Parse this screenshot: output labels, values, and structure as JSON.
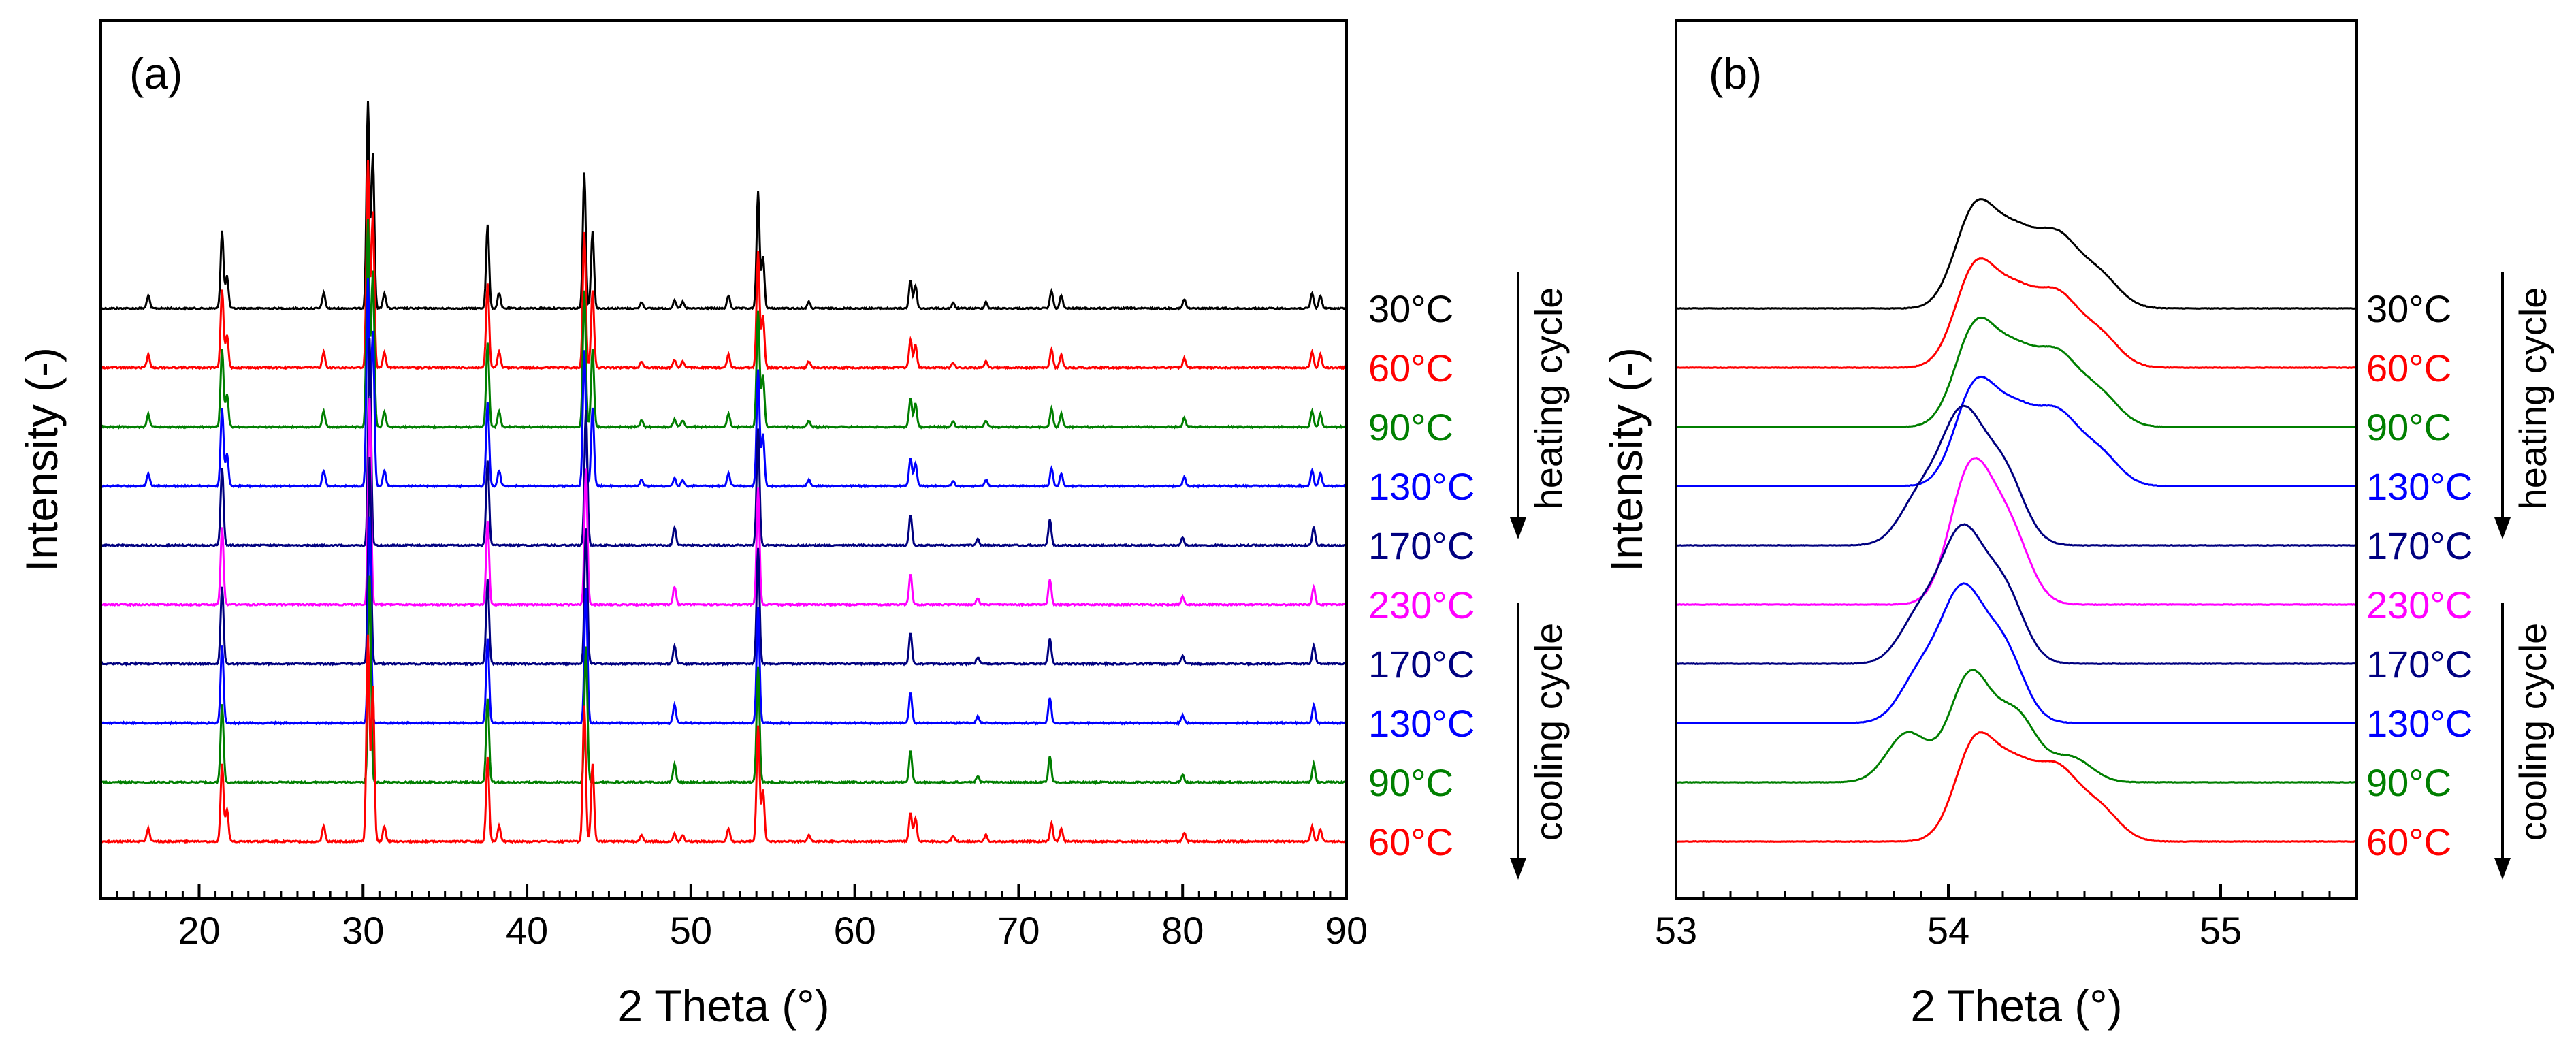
{
  "chart_data": [
    {
      "type": "line",
      "panel_label": "(a)",
      "xlabel": "2 Theta (°)",
      "ylabel": "Intensity (-)",
      "xlim": [
        14,
        90
      ],
      "xticks": [
        20,
        30,
        40,
        50,
        60,
        70,
        80,
        90
      ],
      "x_minor_step": 1,
      "y_scale": "arbitrary (offset traces)",
      "x_range_data": [
        14,
        90
      ],
      "series": [
        {
          "name": "30°C",
          "label": "30°C",
          "color": "#000000",
          "phase": "A",
          "offset": 10,
          "peaks": [
            [
              16.9,
              0.1
            ],
            [
              21.4,
              0.6
            ],
            [
              21.7,
              0.25
            ],
            [
              27.6,
              0.12
            ],
            [
              30.3,
              1.6
            ],
            [
              30.6,
              1.2
            ],
            [
              31.3,
              0.12
            ],
            [
              37.6,
              0.65
            ],
            [
              38.3,
              0.12
            ],
            [
              43.5,
              1.05
            ],
            [
              44.0,
              0.6
            ],
            [
              47.0,
              0.05
            ],
            [
              49.0,
              0.06
            ],
            [
              49.5,
              0.05
            ],
            [
              52.3,
              0.1
            ],
            [
              54.1,
              0.9
            ],
            [
              54.4,
              0.4
            ],
            [
              57.2,
              0.05
            ],
            [
              63.4,
              0.22
            ],
            [
              63.7,
              0.18
            ],
            [
              66.0,
              0.04
            ],
            [
              68.0,
              0.05
            ],
            [
              72.0,
              0.14
            ],
            [
              72.6,
              0.1
            ],
            [
              80.1,
              0.07
            ],
            [
              87.9,
              0.12
            ],
            [
              88.4,
              0.1
            ]
          ]
        },
        {
          "name": "60°C",
          "label": "60°C",
          "color": "#ff0000",
          "phase": "A",
          "offset": 9,
          "peaks": [
            [
              16.9,
              0.1
            ],
            [
              21.4,
              0.6
            ],
            [
              21.7,
              0.25
            ],
            [
              27.6,
              0.12
            ],
            [
              30.3,
              1.6
            ],
            [
              30.6,
              1.2
            ],
            [
              31.3,
              0.12
            ],
            [
              37.6,
              0.65
            ],
            [
              38.3,
              0.12
            ],
            [
              43.5,
              1.05
            ],
            [
              44.0,
              0.6
            ],
            [
              47.0,
              0.05
            ],
            [
              49.0,
              0.06
            ],
            [
              49.5,
              0.05
            ],
            [
              52.3,
              0.1
            ],
            [
              54.1,
              0.9
            ],
            [
              54.4,
              0.4
            ],
            [
              57.2,
              0.05
            ],
            [
              63.4,
              0.22
            ],
            [
              63.7,
              0.18
            ],
            [
              66.0,
              0.04
            ],
            [
              68.0,
              0.05
            ],
            [
              72.0,
              0.14
            ],
            [
              72.6,
              0.1
            ],
            [
              80.1,
              0.07
            ],
            [
              87.9,
              0.12
            ],
            [
              88.4,
              0.1
            ]
          ]
        },
        {
          "name": "90°C",
          "label": "90°C",
          "color": "#007f00",
          "phase": "A",
          "offset": 8,
          "peaks": [
            [
              16.9,
              0.1
            ],
            [
              21.4,
              0.6
            ],
            [
              21.7,
              0.25
            ],
            [
              27.6,
              0.12
            ],
            [
              30.3,
              1.6
            ],
            [
              30.6,
              1.2
            ],
            [
              31.3,
              0.12
            ],
            [
              37.6,
              0.65
            ],
            [
              38.3,
              0.12
            ],
            [
              43.5,
              1.05
            ],
            [
              44.0,
              0.6
            ],
            [
              47.0,
              0.05
            ],
            [
              49.0,
              0.06
            ],
            [
              49.5,
              0.05
            ],
            [
              52.3,
              0.1
            ],
            [
              54.1,
              0.9
            ],
            [
              54.4,
              0.4
            ],
            [
              57.2,
              0.05
            ],
            [
              63.4,
              0.22
            ],
            [
              63.7,
              0.18
            ],
            [
              66.0,
              0.04
            ],
            [
              68.0,
              0.05
            ],
            [
              72.0,
              0.14
            ],
            [
              72.6,
              0.1
            ],
            [
              80.1,
              0.07
            ],
            [
              87.9,
              0.12
            ],
            [
              88.4,
              0.1
            ]
          ]
        },
        {
          "name": "130°C",
          "label": "130°C",
          "color": "#0000ff",
          "phase": "A",
          "offset": 7,
          "peaks": [
            [
              16.9,
              0.1
            ],
            [
              21.4,
              0.6
            ],
            [
              21.7,
              0.25
            ],
            [
              27.6,
              0.12
            ],
            [
              30.3,
              1.6
            ],
            [
              30.6,
              1.2
            ],
            [
              31.3,
              0.12
            ],
            [
              37.6,
              0.65
            ],
            [
              38.3,
              0.12
            ],
            [
              43.5,
              1.05
            ],
            [
              44.0,
              0.6
            ],
            [
              47.0,
              0.05
            ],
            [
              49.0,
              0.06
            ],
            [
              49.5,
              0.05
            ],
            [
              52.3,
              0.1
            ],
            [
              54.1,
              0.9
            ],
            [
              54.4,
              0.4
            ],
            [
              57.2,
              0.05
            ],
            [
              63.4,
              0.22
            ],
            [
              63.7,
              0.18
            ],
            [
              66.0,
              0.04
            ],
            [
              68.0,
              0.05
            ],
            [
              72.0,
              0.14
            ],
            [
              72.6,
              0.1
            ],
            [
              80.1,
              0.07
            ],
            [
              87.9,
              0.12
            ],
            [
              88.4,
              0.1
            ]
          ]
        },
        {
          "name": "170°C",
          "label": "170°C",
          "color": "#000080",
          "phase": "B",
          "offset": 6,
          "peaks": [
            [
              21.4,
              0.6
            ],
            [
              30.4,
              1.6
            ],
            [
              37.6,
              0.65
            ],
            [
              43.6,
              1.05
            ],
            [
              49.0,
              0.14
            ],
            [
              54.1,
              0.9
            ],
            [
              63.4,
              0.24
            ],
            [
              67.5,
              0.05
            ],
            [
              71.9,
              0.2
            ],
            [
              80.0,
              0.06
            ],
            [
              88.0,
              0.14
            ]
          ]
        },
        {
          "name": "230°C",
          "label": "230°C",
          "color": "#ff00ff",
          "phase": "B",
          "offset": 5,
          "peaks": [
            [
              21.4,
              0.6
            ],
            [
              30.4,
              1.6
            ],
            [
              37.6,
              0.65
            ],
            [
              43.6,
              1.05
            ],
            [
              49.0,
              0.14
            ],
            [
              54.1,
              0.9
            ],
            [
              63.4,
              0.24
            ],
            [
              67.5,
              0.05
            ],
            [
              71.9,
              0.2
            ],
            [
              80.0,
              0.06
            ],
            [
              88.0,
              0.14
            ]
          ]
        },
        {
          "name": "170°C",
          "label": "170°C",
          "color": "#000080",
          "phase": "B",
          "offset": 4,
          "peaks": [
            [
              21.4,
              0.6
            ],
            [
              30.4,
              1.6
            ],
            [
              37.6,
              0.65
            ],
            [
              43.6,
              1.05
            ],
            [
              49.0,
              0.14
            ],
            [
              54.1,
              0.9
            ],
            [
              63.4,
              0.24
            ],
            [
              67.5,
              0.05
            ],
            [
              71.9,
              0.2
            ],
            [
              80.0,
              0.06
            ],
            [
              88.0,
              0.14
            ]
          ]
        },
        {
          "name": "130°C",
          "label": "130°C",
          "color": "#0000ff",
          "phase": "B",
          "offset": 3,
          "peaks": [
            [
              21.4,
              0.6
            ],
            [
              30.4,
              1.6
            ],
            [
              37.6,
              0.65
            ],
            [
              43.6,
              1.05
            ],
            [
              49.0,
              0.14
            ],
            [
              54.1,
              0.9
            ],
            [
              63.4,
              0.24
            ],
            [
              67.5,
              0.05
            ],
            [
              71.9,
              0.2
            ],
            [
              80.0,
              0.06
            ],
            [
              88.0,
              0.14
            ]
          ]
        },
        {
          "name": "90°C",
          "label": "90°C",
          "color": "#007f00",
          "phase": "B",
          "offset": 2,
          "peaks": [
            [
              21.4,
              0.6
            ],
            [
              30.4,
              1.6
            ],
            [
              37.6,
              0.65
            ],
            [
              43.6,
              1.05
            ],
            [
              49.0,
              0.14
            ],
            [
              54.1,
              0.9
            ],
            [
              63.4,
              0.24
            ],
            [
              67.5,
              0.05
            ],
            [
              71.9,
              0.2
            ],
            [
              80.0,
              0.06
            ],
            [
              88.0,
              0.14
            ]
          ]
        },
        {
          "name": "60°C",
          "label": "60°C",
          "color": "#ff0000",
          "phase": "A",
          "offset": 1,
          "peaks": [
            [
              16.9,
              0.1
            ],
            [
              21.4,
              0.6
            ],
            [
              21.7,
              0.25
            ],
            [
              27.6,
              0.12
            ],
            [
              30.3,
              1.6
            ],
            [
              30.6,
              1.2
            ],
            [
              31.3,
              0.12
            ],
            [
              37.6,
              0.65
            ],
            [
              38.3,
              0.12
            ],
            [
              43.5,
              1.05
            ],
            [
              44.0,
              0.6
            ],
            [
              47.0,
              0.05
            ],
            [
              49.0,
              0.06
            ],
            [
              49.5,
              0.05
            ],
            [
              52.3,
              0.1
            ],
            [
              54.1,
              0.9
            ],
            [
              54.4,
              0.4
            ],
            [
              57.2,
              0.05
            ],
            [
              63.4,
              0.22
            ],
            [
              63.7,
              0.18
            ],
            [
              66.0,
              0.04
            ],
            [
              68.0,
              0.05
            ],
            [
              72.0,
              0.14
            ],
            [
              72.6,
              0.1
            ],
            [
              80.1,
              0.07
            ],
            [
              87.9,
              0.12
            ],
            [
              88.4,
              0.1
            ]
          ]
        }
      ],
      "annotations": {
        "heating": "heating cycle",
        "cooling": "cooling cycle"
      }
    },
    {
      "type": "line",
      "panel_label": "(b)",
      "xlabel": "2 Theta (°)",
      "ylabel": "Intensity (-)",
      "xlim": [
        53,
        55.5
      ],
      "xticks": [
        53,
        54,
        55
      ],
      "x_minor_step": 0.1,
      "y_scale": "arbitrary (offset traces)",
      "series": [
        {
          "name": "30°C",
          "label": "30°C",
          "color": "#000000",
          "offset": 10,
          "peaks": [
            [
              54.1,
              1.2
            ],
            [
              54.25,
              0.8
            ],
            [
              54.4,
              0.8
            ],
            [
              54.55,
              0.4
            ]
          ]
        },
        {
          "name": "60°C",
          "label": "60°C",
          "color": "#ff0000",
          "offset": 9,
          "peaks": [
            [
              54.1,
              1.2
            ],
            [
              54.25,
              0.8
            ],
            [
              54.4,
              0.8
            ],
            [
              54.55,
              0.4
            ]
          ]
        },
        {
          "name": "90°C",
          "label": "90°C",
          "color": "#007f00",
          "offset": 8,
          "peaks": [
            [
              54.1,
              1.2
            ],
            [
              54.25,
              0.8
            ],
            [
              54.4,
              0.8
            ],
            [
              54.55,
              0.4
            ]
          ]
        },
        {
          "name": "130°C",
          "label": "130°C",
          "color": "#0000ff",
          "offset": 7,
          "peaks": [
            [
              54.1,
              1.2
            ],
            [
              54.25,
              0.8
            ],
            [
              54.4,
              0.8
            ],
            [
              54.55,
              0.4
            ]
          ]
        },
        {
          "name": "170°C",
          "label": "170°C",
          "color": "#000080",
          "offset": 6,
          "peaks": [
            [
              53.9,
              0.6
            ],
            [
              54.05,
              1.5
            ],
            [
              54.2,
              0.9
            ]
          ]
        },
        {
          "name": "230°C",
          "label": "230°C",
          "color": "#ff00ff",
          "offset": 5,
          "peaks": [
            [
              54.08,
              1.6
            ],
            [
              54.22,
              0.9
            ]
          ]
        },
        {
          "name": "170°C",
          "label": "170°C",
          "color": "#000080",
          "offset": 4,
          "peaks": [
            [
              53.9,
              0.6
            ],
            [
              54.05,
              1.5
            ],
            [
              54.2,
              0.9
            ]
          ]
        },
        {
          "name": "130°C",
          "label": "130°C",
          "color": "#0000ff",
          "offset": 3,
          "peaks": [
            [
              53.9,
              0.6
            ],
            [
              54.05,
              1.5
            ],
            [
              54.2,
              0.9
            ]
          ]
        },
        {
          "name": "90°C",
          "label": "90°C",
          "color": "#007f00",
          "offset": 2,
          "peaks": [
            [
              53.85,
              0.6
            ],
            [
              54.08,
              1.3
            ],
            [
              54.25,
              0.8
            ],
            [
              54.45,
              0.3
            ]
          ]
        },
        {
          "name": "60°C",
          "label": "60°C",
          "color": "#ff0000",
          "offset": 1,
          "peaks": [
            [
              54.1,
              1.2
            ],
            [
              54.25,
              0.8
            ],
            [
              54.4,
              0.8
            ],
            [
              54.55,
              0.4
            ]
          ]
        }
      ],
      "annotations": {
        "heating": "heating cycle",
        "cooling": "cooling cycle"
      }
    }
  ]
}
